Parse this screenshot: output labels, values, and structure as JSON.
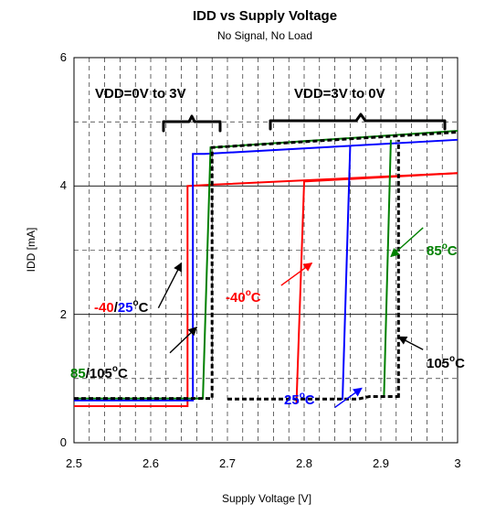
{
  "chart_data": {
    "type": "line",
    "title": "IDD vs Supply Voltage",
    "subtitle": "No Signal, No Load",
    "xlabel": "Supply Voltage [V]",
    "ylabel": "IDD [mA]",
    "xlim": [
      2.5,
      3.0
    ],
    "ylim": [
      0,
      6
    ],
    "xticks": [
      "2.5",
      "2.6",
      "2.7",
      "2.8",
      "2.9",
      "3"
    ],
    "yticks": [
      "0",
      "2",
      "4",
      "6"
    ],
    "grid": "dashed, minor x every 0.02 V, y every 1 mA",
    "colors": {
      "red": "#ff0000",
      "blue": "#0000ff",
      "green": "#008000",
      "black": "#000000"
    },
    "series": [
      {
        "color": "#ff0000",
        "x": [
          2.5,
          2.648,
          2.648,
          2.68,
          3.0
        ],
        "y": [
          0.57,
          0.57,
          4.0,
          4.02,
          4.2
        ]
      },
      {
        "color": "#ff0000",
        "x": [
          2.79,
          2.8,
          3.0
        ],
        "y": [
          0.62,
          4.07,
          4.2
        ]
      },
      {
        "color": "#0000ff",
        "x": [
          2.5,
          2.655,
          2.655,
          2.67,
          3.0
        ],
        "y": [
          0.66,
          0.66,
          4.5,
          4.5,
          4.72
        ]
      },
      {
        "color": "#0000ff",
        "x": [
          2.85,
          2.86
        ],
        "y": [
          0.67,
          4.62
        ]
      },
      {
        "color": "#008000",
        "x": [
          2.5,
          2.668,
          2.678,
          3.0
        ],
        "y": [
          0.69,
          0.69,
          4.6,
          4.86
        ]
      },
      {
        "color": "#008000",
        "x": [
          2.904,
          2.913
        ],
        "y": [
          0.7,
          4.72
        ]
      },
      {
        "color": "#000000",
        "dashed": true,
        "x": [
          2.5,
          2.68,
          2.68,
          3.0
        ],
        "y": [
          0.69,
          0.69,
          4.6,
          4.84
        ]
      },
      {
        "color": "#000000",
        "dashed": true,
        "x": [
          2.923,
          2.923
        ],
        "y": [
          0.7,
          4.72
        ]
      },
      {
        "color": "#000000",
        "dashed": true,
        "x": [
          2.7,
          2.87,
          2.885,
          2.923
        ],
        "y": [
          0.68,
          0.68,
          0.72,
          0.72
        ]
      }
    ],
    "annotations": {
      "left_range": "VDD=0V to 3V",
      "right_range": "VDD=3V to 0V",
      "label_85": "85",
      "label_105": "105",
      "label_slash": "/",
      "label_m40": "-40",
      "label_25": "25",
      "degC": "o",
      "C": "C"
    },
    "arrows": [
      {
        "color": "#000000",
        "from": [
          2.61,
          2.1
        ],
        "to": [
          2.64,
          2.8
        ]
      },
      {
        "color": "#ff0000",
        "from": [
          2.77,
          2.45
        ],
        "to": [
          2.81,
          2.8
        ]
      },
      {
        "color": "#000000",
        "from": [
          2.625,
          1.4
        ],
        "to": [
          2.66,
          1.8
        ]
      },
      {
        "color": "#0000ff",
        "from": [
          2.84,
          0.55
        ],
        "to": [
          2.875,
          0.85
        ]
      },
      {
        "color": "#008000",
        "from": [
          2.955,
          3.35
        ],
        "to": [
          2.913,
          2.9
        ]
      },
      {
        "color": "#000000",
        "from": [
          2.955,
          1.45
        ],
        "to": [
          2.923,
          1.65
        ]
      }
    ]
  }
}
